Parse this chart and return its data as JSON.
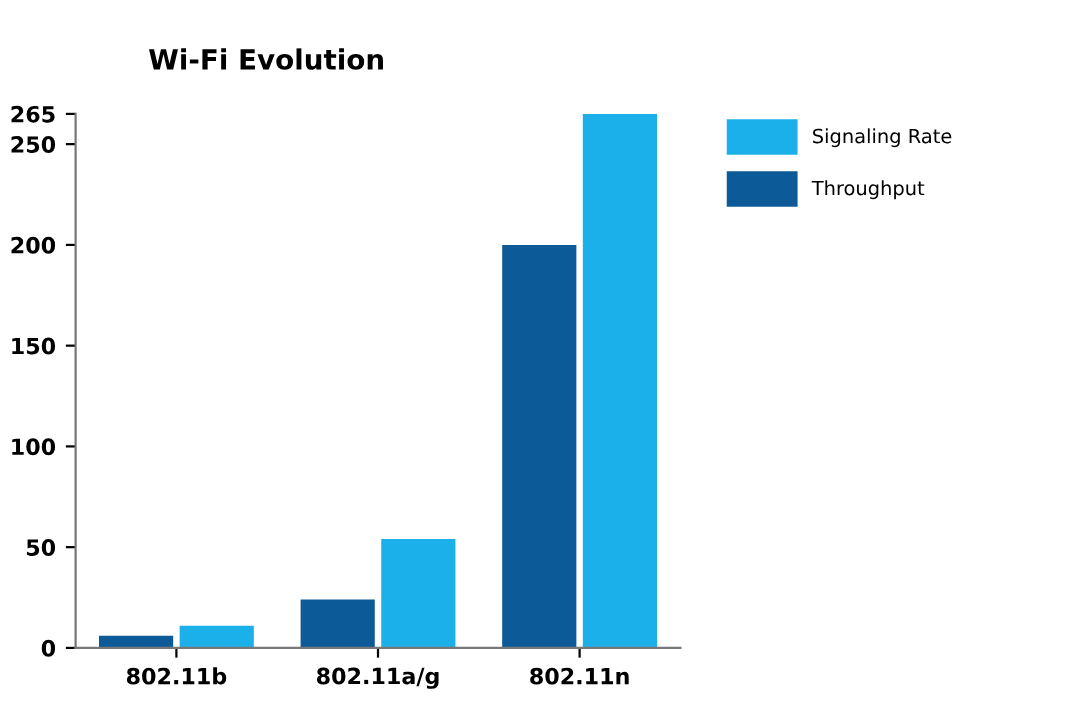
{
  "chart_data": {
    "type": "bar",
    "title": "Wi-Fi Evolution",
    "categories": [
      "802.11b",
      "802.11a/g",
      "802.11n"
    ],
    "series": [
      {
        "name": "Throughput",
        "color": "#0d5a98",
        "values": [
          6,
          24,
          200
        ]
      },
      {
        "name": "Signaling Rate",
        "color": "#1bb0ea",
        "values": [
          11,
          54,
          265
        ]
      }
    ],
    "ylim": [
      0,
      265
    ],
    "yticks": [
      0,
      50,
      100,
      150,
      200,
      250,
      265
    ],
    "grid": false,
    "legend": "top right"
  }
}
